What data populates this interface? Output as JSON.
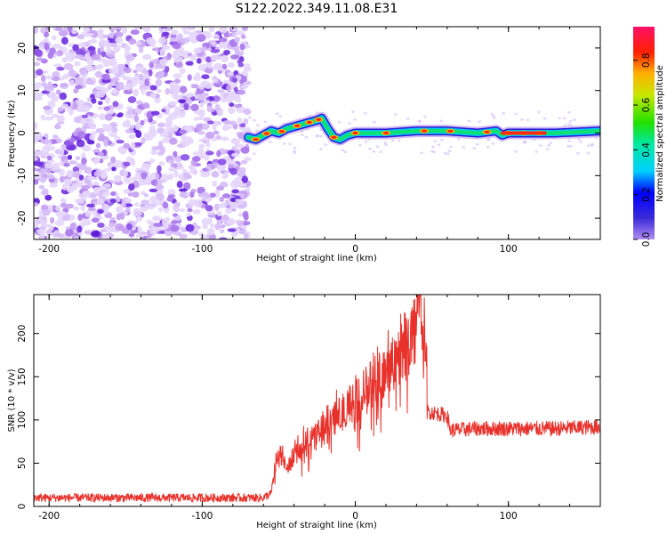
{
  "figure": {
    "title": "S122.2022.349.11.08.E31"
  },
  "colors": {
    "snr_line": "#e8312b",
    "frame": "#000000"
  },
  "chart_data": [
    {
      "type": "heatmap",
      "panel": "spectrogram",
      "xlabel": "Height of straight line (km)",
      "ylabel": "Frequency (Hz)",
      "xlim": [
        -210,
        160
      ],
      "ylim": [
        -25,
        25
      ],
      "xticks": [
        -200,
        -100,
        0,
        100
      ],
      "yticks": [
        -20,
        -10,
        0,
        10,
        20
      ],
      "grid": false,
      "noise_region": {
        "x_range": [
          -210,
          -70
        ],
        "description_color": "purple"
      },
      "ridge": [
        {
          "x": -70,
          "y": -1
        },
        {
          "x": -65,
          "y": -1.5
        },
        {
          "x": -60,
          "y": -0.5
        },
        {
          "x": -55,
          "y": 0.5
        },
        {
          "x": -50,
          "y": 0
        },
        {
          "x": -45,
          "y": 1
        },
        {
          "x": -40,
          "y": 1.5
        },
        {
          "x": -35,
          "y": 2
        },
        {
          "x": -30,
          "y": 2.5
        },
        {
          "x": -25,
          "y": 3
        },
        {
          "x": -22,
          "y": 3.5
        },
        {
          "x": -18,
          "y": 1
        },
        {
          "x": -14,
          "y": -1
        },
        {
          "x": -10,
          "y": -1.5
        },
        {
          "x": -5,
          "y": -0.5
        },
        {
          "x": 0,
          "y": 0
        },
        {
          "x": 20,
          "y": 0
        },
        {
          "x": 40,
          "y": 0.5
        },
        {
          "x": 60,
          "y": 0.5
        },
        {
          "x": 80,
          "y": 0
        },
        {
          "x": 92,
          "y": 0.5
        },
        {
          "x": 96,
          "y": -0.5
        },
        {
          "x": 100,
          "y": 0
        },
        {
          "x": 130,
          "y": 0
        },
        {
          "x": 160,
          "y": 0.5
        }
      ],
      "colorbar": {
        "label": "Normalized spectral amplitude",
        "ticks": [
          "0.0",
          "0.2",
          "0.4",
          "0.6",
          "0.8"
        ],
        "range": [
          0,
          0.95
        ]
      }
    },
    {
      "type": "line",
      "panel": "snr",
      "xlabel": "Height of straight line (km)",
      "ylabel": "SNR (10 * v/v)",
      "xlim": [
        -210,
        160
      ],
      "ylim": [
        0,
        245
      ],
      "xticks": [
        -200,
        -100,
        0,
        100
      ],
      "yticks": [
        0,
        50,
        100,
        150,
        200
      ],
      "grid": false,
      "series": [
        {
          "values_description": "noisy trace",
          "points": [
            {
              "x": -210,
              "y": 10
            },
            {
              "x": -150,
              "y": 10
            },
            {
              "x": -100,
              "y": 10
            },
            {
              "x": -60,
              "y": 10
            },
            {
              "x": -55,
              "y": 15
            },
            {
              "x": -52,
              "y": 50
            },
            {
              "x": -48,
              "y": 62
            },
            {
              "x": -44,
              "y": 45
            },
            {
              "x": -40,
              "y": 60
            },
            {
              "x": -30,
              "y": 75
            },
            {
              "x": -20,
              "y": 90
            },
            {
              "x": -10,
              "y": 105
            },
            {
              "x": 0,
              "y": 120
            },
            {
              "x": 10,
              "y": 140
            },
            {
              "x": 20,
              "y": 160
            },
            {
              "x": 30,
              "y": 180
            },
            {
              "x": 36,
              "y": 195
            },
            {
              "x": 40,
              "y": 210
            },
            {
              "x": 46,
              "y": 208
            },
            {
              "x": 47,
              "y": 110
            },
            {
              "x": 60,
              "y": 105
            },
            {
              "x": 62,
              "y": 88
            },
            {
              "x": 80,
              "y": 90
            },
            {
              "x": 100,
              "y": 90
            },
            {
              "x": 130,
              "y": 90
            },
            {
              "x": 160,
              "y": 92
            }
          ]
        }
      ]
    }
  ]
}
